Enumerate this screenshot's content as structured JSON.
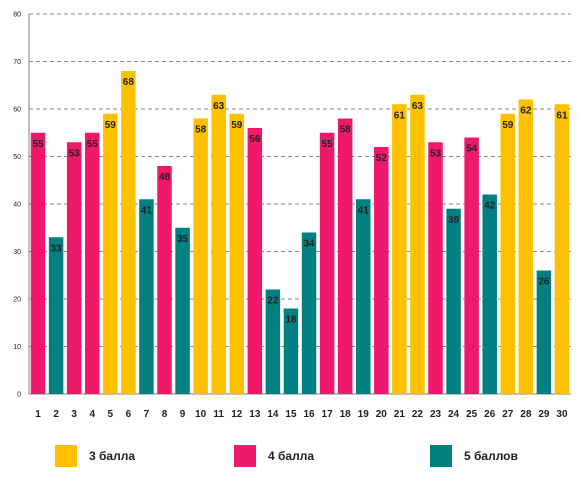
{
  "chart_data": {
    "type": "bar",
    "categories": [
      "1",
      "2",
      "3",
      "4",
      "5",
      "6",
      "7",
      "8",
      "9",
      "10",
      "11",
      "12",
      "13",
      "14",
      "15",
      "16",
      "17",
      "18",
      "19",
      "20",
      "21",
      "22",
      "23",
      "24",
      "25",
      "26",
      "27",
      "28",
      "29",
      "30"
    ],
    "values": [
      55,
      33,
      53,
      55,
      59,
      68,
      41,
      48,
      35,
      58,
      63,
      59,
      56,
      22,
      18,
      34,
      55,
      58,
      41,
      52,
      61,
      63,
      53,
      39,
      54,
      42,
      59,
      62,
      26,
      61
    ],
    "bar_groups": [
      "4 балла",
      "5 баллов",
      "4 балла",
      "4 балла",
      "3 балла",
      "3 балла",
      "5 баллов",
      "4 балла",
      "5 баллов",
      "3 балла",
      "3 балла",
      "3 балла",
      "4 балла",
      "5 баллов",
      "5 баллов",
      "5 баллов",
      "4 балла",
      "4 балла",
      "5 баллов",
      "4 балла",
      "3 балла",
      "3 балла",
      "4 балла",
      "5 баллов",
      "4 балла",
      "5 баллов",
      "3 балла",
      "3 балла",
      "5 баллов",
      "3 балла"
    ],
    "ylim": [
      0,
      80
    ],
    "yticks": [
      0,
      10,
      20,
      30,
      40,
      50,
      60,
      70,
      80
    ],
    "grid": true,
    "legend": [
      {
        "name": "3 балла",
        "color": "#FFC000"
      },
      {
        "name": "4 балла",
        "color": "#F0186A"
      },
      {
        "name": "5 баллов",
        "color": "#008080"
      }
    ],
    "legend_position": "bottom"
  }
}
